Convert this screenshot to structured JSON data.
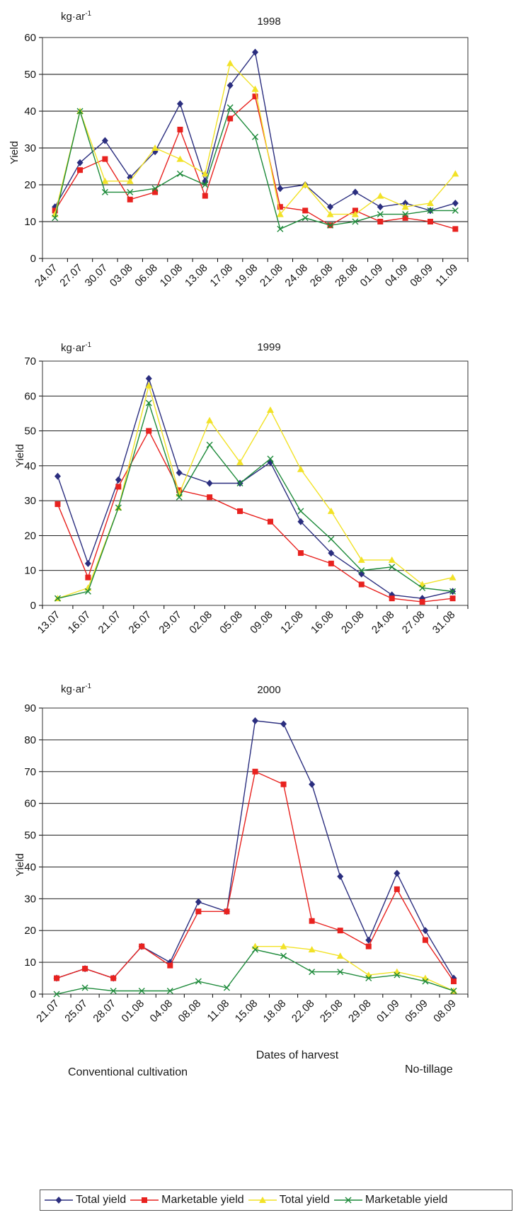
{
  "chart_data": [
    {
      "type": "line",
      "title": "1998",
      "unit_label": "kg·ar",
      "unit_sup": "-1",
      "ylabel": "Yield",
      "ylim": [
        0,
        60
      ],
      "ytick_step": 10,
      "grid": true,
      "categories": [
        "24.07",
        "27.07",
        "30.07",
        "03.08",
        "06.08",
        "10.08",
        "13.08",
        "17.08",
        "19.08",
        "21.08",
        "24.08",
        "26.08",
        "28.08",
        "01.09",
        "04.09",
        "08.09",
        "11.09"
      ],
      "series": [
        {
          "name": "Total yield",
          "color": "#2b2e7f",
          "marker": "diamond",
          "x": [
            0,
            1,
            2,
            3,
            4,
            5,
            6,
            7,
            8,
            9,
            10,
            11,
            12,
            13,
            14,
            15,
            16
          ],
          "values": [
            14,
            26,
            32,
            22,
            29,
            42,
            21,
            47,
            56,
            19,
            20,
            14,
            18,
            14,
            15,
            13,
            15
          ]
        },
        {
          "name": "Marketable yield",
          "color": "#e8221f",
          "marker": "square",
          "x": [
            0,
            1,
            2,
            3,
            4,
            5,
            6,
            7,
            8,
            9,
            10,
            11,
            12,
            13,
            14,
            15,
            16
          ],
          "values": [
            13,
            24,
            27,
            16,
            18,
            35,
            17,
            38,
            44,
            14,
            13,
            9,
            13,
            10,
            11,
            10,
            8
          ]
        },
        {
          "name": "Total yield",
          "color": "#f2e227",
          "marker": "triangle",
          "x": [
            0,
            1,
            2,
            3,
            4,
            5,
            6,
            7,
            8,
            9,
            10,
            11,
            12,
            13,
            14,
            15,
            16
          ],
          "values": [
            12,
            40,
            21,
            21,
            30,
            27,
            23,
            53,
            46,
            12,
            20,
            12,
            12,
            17,
            14,
            15,
            23
          ]
        },
        {
          "name": "Marketable yield",
          "color": "#1d8a3a",
          "marker": "cross",
          "x": [
            0,
            1,
            2,
            3,
            4,
            5,
            6,
            7,
            8,
            9,
            10,
            11,
            12,
            13,
            14,
            15,
            16
          ],
          "values": [
            11,
            40,
            18,
            18,
            19,
            23,
            20,
            41,
            33,
            8,
            11,
            9,
            10,
            12,
            12,
            13,
            13
          ]
        }
      ]
    },
    {
      "type": "line",
      "title": "1999",
      "unit_label": "kg·ar",
      "unit_sup": "-1",
      "ylabel": "Yield",
      "ylim": [
        0,
        70
      ],
      "ytick_step": 10,
      "grid": true,
      "categories": [
        "13.07",
        "16.07",
        "21.07",
        "26.07",
        "29.07",
        "02.08",
        "05.08",
        "09.08",
        "12.08",
        "16.08",
        "20.08",
        "24.08",
        "27.08",
        "31.08"
      ],
      "series": [
        {
          "name": "Total yield",
          "color": "#2b2e7f",
          "marker": "diamond",
          "x": [
            0,
            1,
            2,
            3,
            4,
            5,
            6,
            7,
            8,
            9,
            10,
            11,
            12,
            13
          ],
          "values": [
            37,
            12,
            36,
            65,
            38,
            35,
            35,
            41,
            24,
            15,
            9,
            3,
            2,
            4
          ]
        },
        {
          "name": "Marketable yield",
          "color": "#e8221f",
          "marker": "square",
          "x": [
            0,
            1,
            2,
            3,
            4,
            5,
            6,
            7,
            8,
            9,
            10,
            11,
            12,
            13
          ],
          "values": [
            29,
            8,
            34,
            50,
            33,
            31,
            27,
            24,
            15,
            12,
            6,
            2,
            1,
            2
          ]
        },
        {
          "name": "Total yield",
          "color": "#f2e227",
          "marker": "triangle",
          "x": [
            0,
            1,
            2,
            3,
            4,
            5,
            6,
            7,
            8,
            9,
            10,
            11,
            12,
            13
          ],
          "values": [
            2,
            5,
            28,
            63,
            32,
            53,
            41,
            56,
            39,
            27,
            13,
            13,
            6,
            8
          ]
        },
        {
          "name": "Marketable yield",
          "color": "#1d8a3a",
          "marker": "cross",
          "x": [
            0,
            1,
            2,
            3,
            4,
            5,
            6,
            7,
            8,
            9,
            10,
            11,
            12,
            13
          ],
          "values": [
            2,
            4,
            28,
            58,
            31,
            46,
            35,
            42,
            27,
            19,
            10,
            11,
            5,
            4
          ]
        }
      ]
    },
    {
      "type": "line",
      "title": "2000",
      "unit_label": "kg·ar",
      "unit_sup": "-1",
      "ylabel": "Yield",
      "xlabel": "Dates of harvest",
      "ylim": [
        0,
        90
      ],
      "ytick_step": 10,
      "grid": true,
      "categories": [
        "21.07",
        "25.07",
        "28.07",
        "01.08",
        "04.08",
        "08.08",
        "11.08",
        "15.08",
        "18.08",
        "22.08",
        "25.08",
        "29.08",
        "01.09",
        "05.09",
        "08.09"
      ],
      "series": [
        {
          "name": "Total yield",
          "color": "#2b2e7f",
          "marker": "diamond",
          "x": [
            0,
            1,
            2,
            3,
            4,
            5,
            6,
            7,
            8,
            9,
            10,
            11,
            12,
            13,
            14
          ],
          "values": [
            5,
            8,
            5,
            15,
            10,
            29,
            26,
            86,
            85,
            66,
            37,
            17,
            38,
            20,
            5
          ]
        },
        {
          "name": "Marketable yield",
          "color": "#e8221f",
          "marker": "square",
          "x": [
            0,
            1,
            2,
            3,
            4,
            5,
            6,
            7,
            8,
            9,
            10,
            11,
            12,
            13,
            14
          ],
          "values": [
            5,
            8,
            5,
            15,
            9,
            26,
            26,
            70,
            66,
            23,
            20,
            15,
            33,
            17,
            4
          ]
        },
        {
          "name": "Total yield",
          "color": "#f2e227",
          "marker": "triangle",
          "x": [
            7,
            8,
            9,
            10,
            11,
            12,
            13,
            14
          ],
          "values": [
            15,
            15,
            14,
            12,
            6,
            7,
            5,
            1
          ]
        },
        {
          "name": "Marketable yield",
          "color": "#1d8a3a",
          "marker": "cross",
          "x": [
            0,
            1,
            2,
            3,
            4,
            5,
            6,
            7,
            8,
            9,
            10,
            11,
            12,
            13,
            14
          ],
          "values": [
            0,
            2,
            1,
            1,
            1,
            4,
            2,
            14,
            12,
            7,
            7,
            5,
            6,
            4,
            1
          ]
        }
      ]
    }
  ],
  "annotations": {
    "left_group": "Conventional cultivation",
    "right_group": "No-tillage"
  },
  "legend": [
    {
      "label": "Total yield",
      "color": "#2b2e7f",
      "marker": "diamond"
    },
    {
      "label": "Marketable yield",
      "color": "#e8221f",
      "marker": "square"
    },
    {
      "label": "Total yield",
      "color": "#f2e227",
      "marker": "triangle"
    },
    {
      "label": "Marketable yield",
      "color": "#1d8a3a",
      "marker": "cross"
    }
  ]
}
